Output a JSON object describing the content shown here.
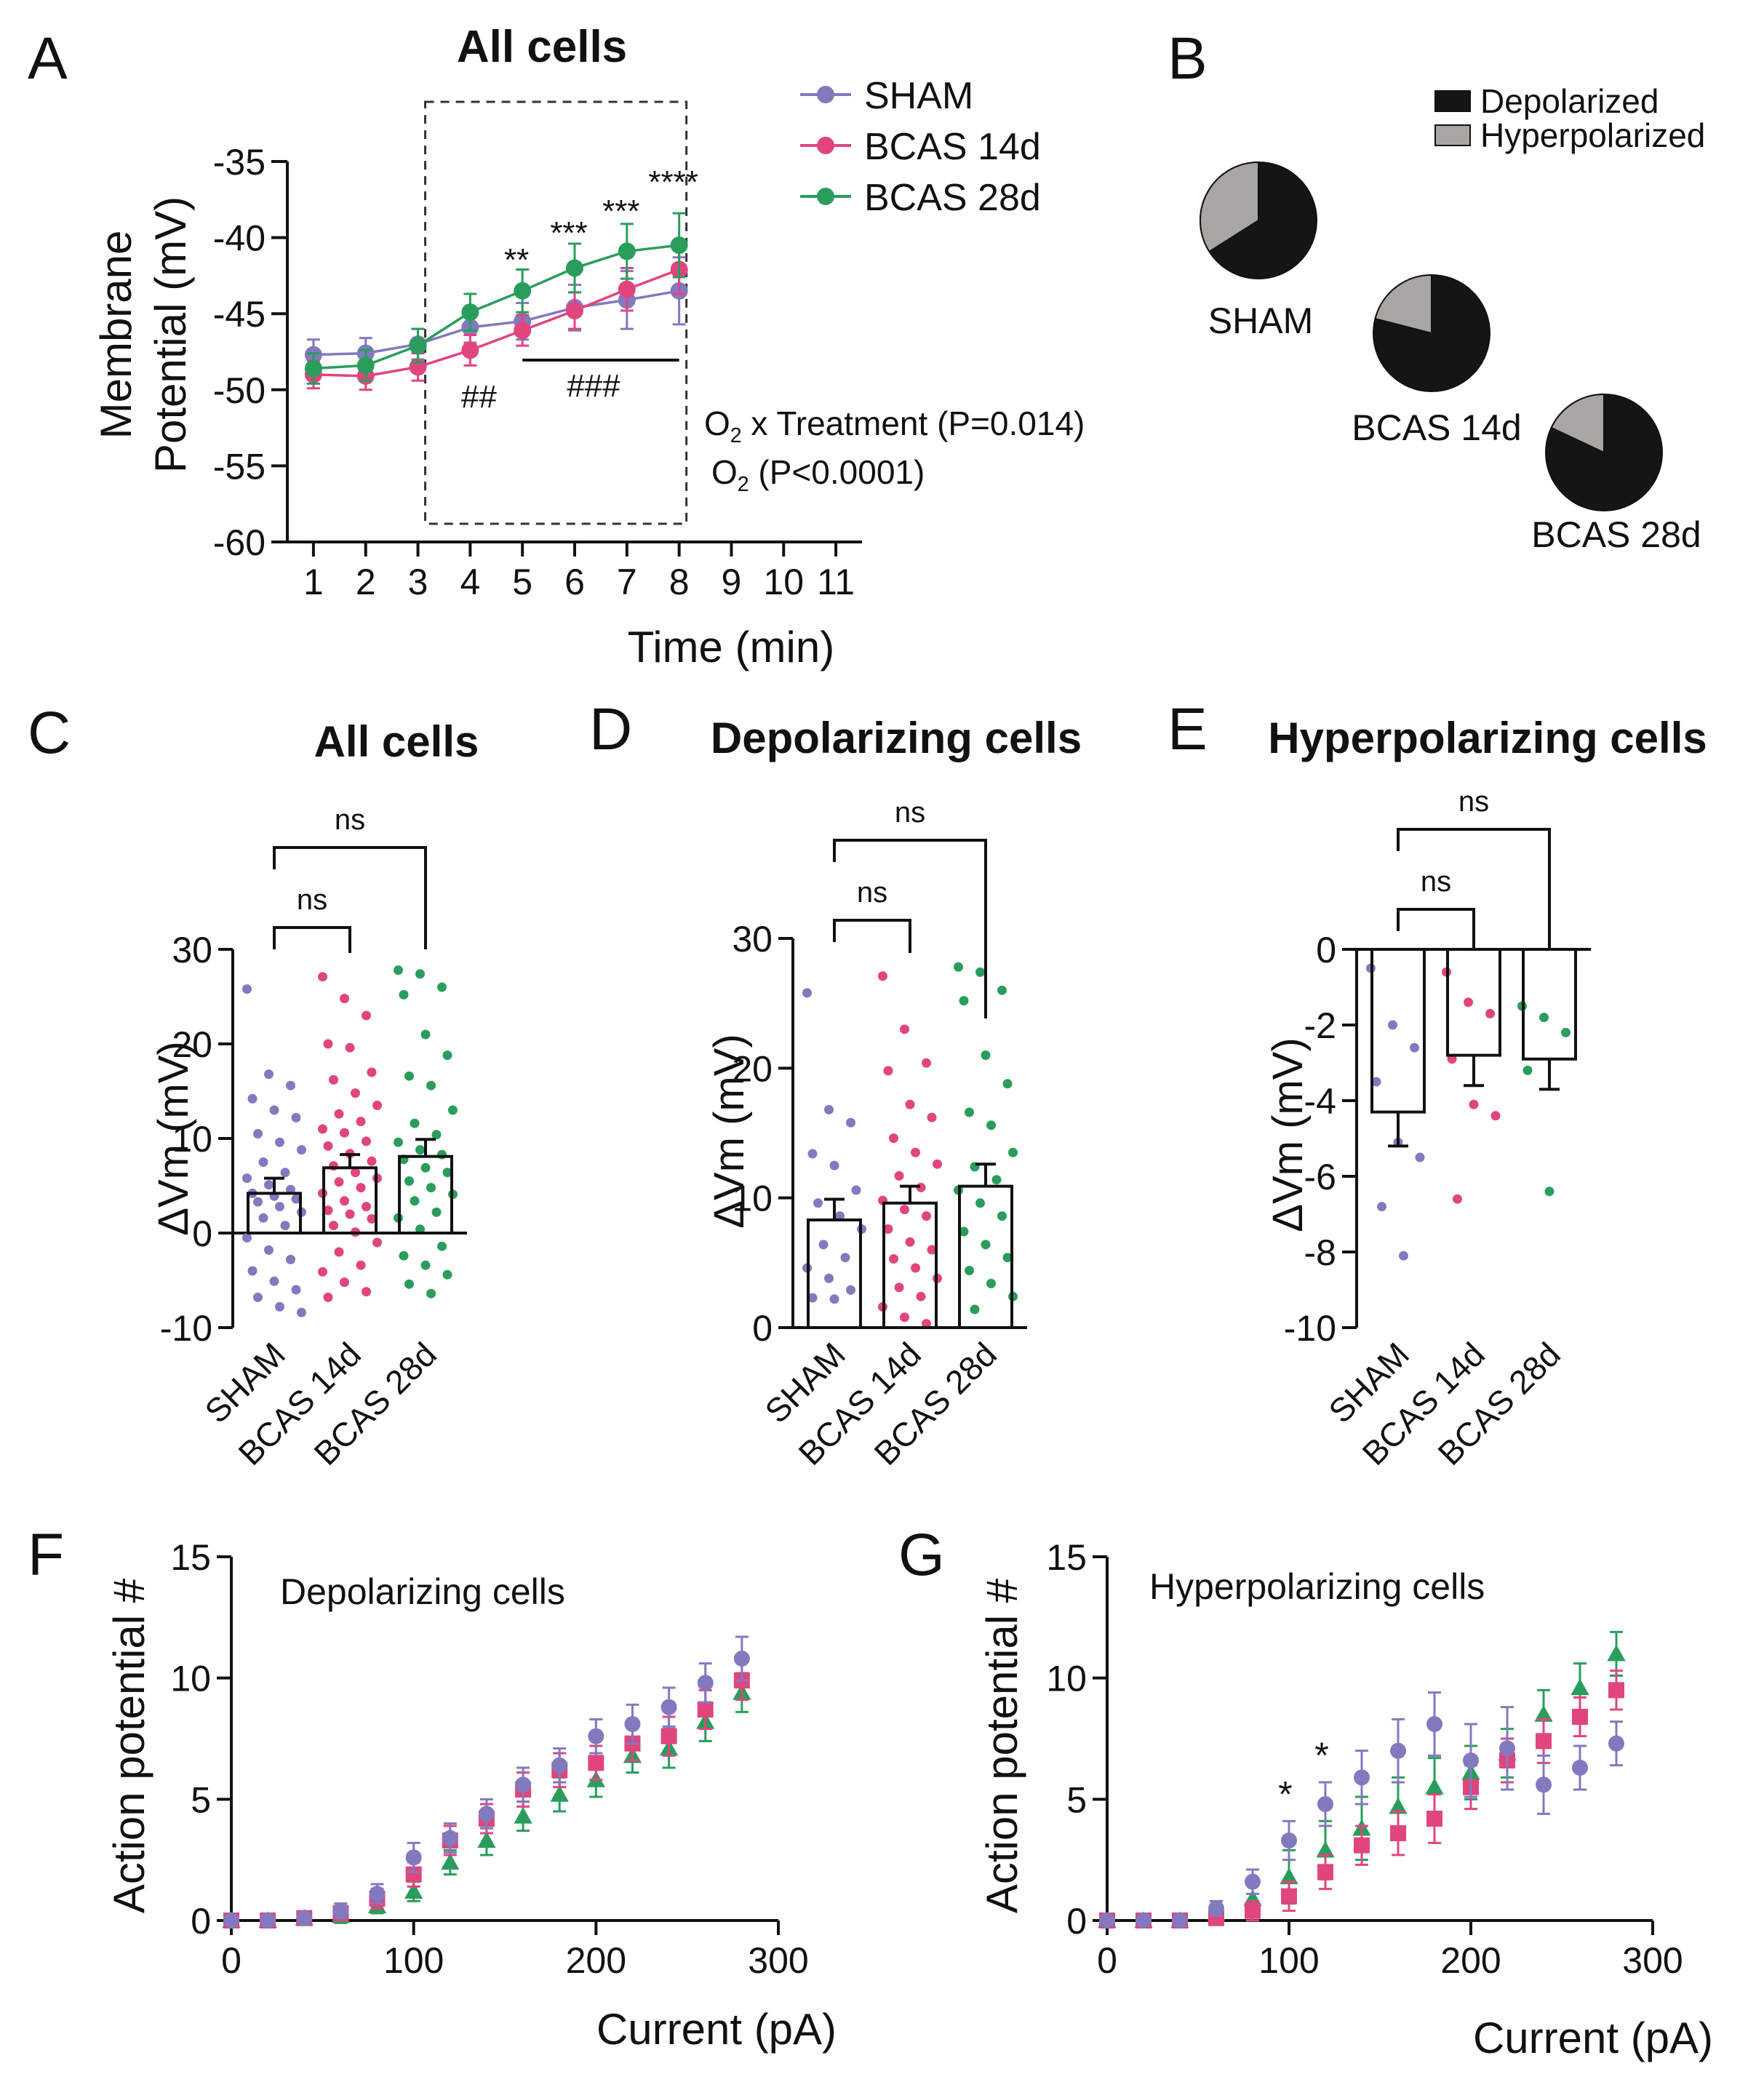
{
  "colors": {
    "sham": "#8279bf",
    "bcas14": "#e0457e",
    "bcas28": "#2a9d5c",
    "depolarized": "#151515",
    "hyperpolarized": "#a9a5a2",
    "axis": "#111111"
  },
  "legend": {
    "series": [
      "SHAM",
      "BCAS 14d",
      "BCAS 28d"
    ],
    "pie": [
      "Depolarized",
      "Hyperpolarized"
    ]
  },
  "chart_data": [
    {
      "panel": "A",
      "type": "line",
      "title": "All cells",
      "xlabel": "Time (min)",
      "ylabel_line1": "Membrane",
      "ylabel_line2": "Potential (mV)",
      "ylim": [
        -60,
        -35
      ],
      "xlim": [
        0.5,
        11.5
      ],
      "xticks": [
        "1",
        "2",
        "3",
        "4",
        "5",
        "6",
        "7",
        "8",
        "9",
        "10",
        "11"
      ],
      "yticks": [
        "-35",
        "-40",
        "-45",
        "-50",
        "-55",
        "-60"
      ],
      "x": [
        1,
        2,
        3,
        4,
        5,
        6,
        7,
        8
      ],
      "series": [
        {
          "name": "SHAM",
          "values": [
            -47.7,
            -47.6,
            -47.0,
            -45.9,
            -45.5,
            -44.6,
            -44.1,
            -43.5
          ],
          "err": [
            1.0,
            1.0,
            1.0,
            1.0,
            1.2,
            1.5,
            1.9,
            2.2
          ]
        },
        {
          "name": "BCAS 14d",
          "values": [
            -49.0,
            -49.1,
            -48.5,
            -47.4,
            -46.1,
            -44.8,
            -43.4,
            -42.1
          ],
          "err": [
            0.9,
            0.9,
            0.9,
            1.0,
            1.0,
            1.2,
            1.4,
            1.6
          ]
        },
        {
          "name": "BCAS 28d",
          "values": [
            -48.6,
            -48.4,
            -47.1,
            -44.9,
            -43.5,
            -42.0,
            -40.9,
            -40.5
          ],
          "err": [
            1.0,
            1.0,
            1.1,
            1.2,
            1.4,
            1.6,
            1.8,
            2.1
          ]
        }
      ],
      "star_annotations": [
        {
          "x": 5,
          "text": "**"
        },
        {
          "x": 6,
          "text": "***"
        },
        {
          "x": 7,
          "text": "***"
        },
        {
          "x": 8,
          "text": "****"
        }
      ],
      "hash_annotations": [
        {
          "x": 4,
          "text": "##"
        },
        {
          "x": 6.5,
          "text": "###"
        }
      ],
      "hash_bar_range": [
        5,
        8
      ],
      "highlight_range": [
        3,
        8
      ],
      "stats_text": [
        "O2 x Treatment (P=0.014)",
        "O2 (P<0.0001)"
      ]
    },
    {
      "panel": "B",
      "type": "pie",
      "groups": [
        {
          "name": "SHAM",
          "depolarized": 0.66,
          "hyperpolarized": 0.34
        },
        {
          "name": "BCAS 14d",
          "depolarized": 0.79,
          "hyperpolarized": 0.21
        },
        {
          "name": "BCAS 28d",
          "depolarized": 0.82,
          "hyperpolarized": 0.18
        }
      ]
    },
    {
      "panel": "C",
      "type": "bar",
      "title": "All cells",
      "ylabel": "ΔVm (mV)",
      "ylim": [
        -10,
        30
      ],
      "yticks": [
        "30",
        "20",
        "10",
        "0",
        "-10"
      ],
      "categories": [
        "SHAM",
        "BCAS 14d",
        "BCAS 28d"
      ],
      "means": [
        4.2,
        6.9,
        8.1
      ],
      "sem": [
        1.6,
        1.4,
        1.8
      ],
      "points": [
        [
          25.8,
          16.8,
          15.6,
          14.2,
          13.0,
          12.2,
          10.5,
          9.6,
          8.8,
          7.5,
          6.4,
          5.8,
          5.1,
          4.6,
          4.2,
          3.9,
          3.6,
          3.3,
          2.8,
          2.2,
          1.6,
          0.8,
          -0.5,
          -1.8,
          -2.8,
          -4.0,
          -5.1,
          -6.0,
          -6.8,
          -7.8,
          -8.4
        ],
        [
          27.1,
          24.8,
          23.0,
          20.0,
          19.6,
          17.0,
          16.2,
          14.8,
          13.5,
          12.6,
          11.8,
          11.0,
          10.6,
          9.7,
          9.2,
          8.4,
          7.6,
          7.1,
          6.4,
          5.8,
          5.4,
          4.8,
          4.2,
          3.4,
          2.8,
          2.4,
          2.0,
          1.5,
          0.8,
          0.1,
          -1.0,
          -2.0,
          -3.4,
          -4.1,
          -5.2,
          -6.2,
          -6.8
        ],
        [
          27.8,
          27.4,
          26.0,
          25.2,
          21.0,
          18.8,
          16.6,
          15.6,
          13.0,
          11.6,
          10.4,
          9.6,
          8.8,
          8.3,
          7.8,
          6.9,
          6.4,
          5.5,
          4.8,
          4.1,
          3.4,
          2.2,
          1.6,
          0.4,
          -1.4,
          -2.4,
          -3.4,
          -4.4,
          -5.4,
          -6.4
        ]
      ],
      "comparisons": [
        {
          "from": 0,
          "to": 1,
          "label": "ns"
        },
        {
          "from": 0,
          "to": 2,
          "label": "ns"
        }
      ]
    },
    {
      "panel": "D",
      "type": "bar",
      "title": "Depolarizing cells",
      "ylabel": "ΔVm (mV)",
      "ylim": [
        0,
        30
      ],
      "yticks": [
        "30",
        "20",
        "10",
        "0"
      ],
      "categories": [
        "SHAM",
        "BCAS 14d",
        "BCAS 28d"
      ],
      "means": [
        8.3,
        9.6,
        10.9
      ],
      "sem": [
        1.6,
        1.3,
        1.7
      ],
      "points": [
        [
          25.8,
          16.8,
          15.8,
          13.4,
          12.5,
          10.6,
          9.6,
          8.6,
          7.6,
          6.4,
          5.4,
          4.6,
          3.8,
          2.9,
          2.3,
          2.2
        ],
        [
          27.1,
          23.0,
          20.4,
          19.8,
          17.2,
          16.2,
          14.6,
          13.5,
          12.6,
          11.7,
          10.8,
          9.8,
          9.1,
          8.6,
          7.6,
          6.6,
          6.0,
          5.3,
          4.6,
          3.8,
          3.1,
          2.4,
          1.6,
          0.8,
          0.3
        ],
        [
          27.8,
          27.4,
          26.0,
          25.2,
          21.0,
          18.8,
          16.6,
          15.6,
          13.5,
          12.4,
          11.4,
          10.6,
          9.6,
          8.6,
          7.4,
          6.4,
          5.4,
          4.4,
          3.4,
          2.4,
          1.4
        ]
      ],
      "comparisons": [
        {
          "from": 0,
          "to": 1,
          "label": "ns"
        },
        {
          "from": 0,
          "to": 2,
          "label": "ns"
        }
      ]
    },
    {
      "panel": "E",
      "type": "bar",
      "title": "Hyperpolarizing cells",
      "ylabel": "ΔVm (mV)",
      "ylim": [
        -10,
        0
      ],
      "yticks": [
        "0",
        "-2",
        "-4",
        "-6",
        "-8",
        "-10"
      ],
      "categories": [
        "SHAM",
        "BCAS 14d",
        "BCAS 28d"
      ],
      "means": [
        -4.3,
        -2.8,
        -2.9
      ],
      "sem": [
        0.9,
        0.8,
        0.8
      ],
      "points": [
        [
          -0.5,
          -2.0,
          -2.6,
          -3.5,
          -5.1,
          -5.5,
          -6.8,
          -8.1
        ],
        [
          -0.6,
          -1.4,
          -1.7,
          -2.9,
          -4.1,
          -4.4,
          -6.6
        ],
        [
          -1.5,
          -1.8,
          -2.2,
          -3.2,
          -6.4
        ]
      ],
      "comparisons": [
        {
          "from": 0,
          "to": 1,
          "label": "ns"
        },
        {
          "from": 0,
          "to": 2,
          "label": "ns"
        }
      ]
    },
    {
      "panel": "F",
      "type": "scatter",
      "title": "Depolarizing cells",
      "xlabel": "Current (pA)",
      "ylabel": "Action potential #",
      "xlim": [
        0,
        300
      ],
      "ylim": [
        0,
        15
      ],
      "xticks": [
        "0",
        "100",
        "200",
        "300"
      ],
      "yticks": [
        "0",
        "5",
        "10",
        "15"
      ],
      "x": [
        0,
        20,
        40,
        60,
        80,
        100,
        120,
        140,
        160,
        180,
        200,
        220,
        240,
        260,
        280
      ],
      "series": [
        {
          "name": "SHAM",
          "values": [
            0,
            0,
            0.1,
            0.4,
            1.1,
            2.6,
            3.4,
            4.4,
            5.6,
            6.4,
            7.6,
            8.1,
            8.8,
            9.8,
            10.8
          ],
          "err": [
            0.1,
            0.1,
            0.2,
            0.3,
            0.4,
            0.6,
            0.6,
            0.6,
            0.7,
            0.7,
            0.7,
            0.8,
            0.8,
            0.8,
            0.9
          ]
        },
        {
          "name": "BCAS 14d",
          "values": [
            0,
            0,
            0.1,
            0.3,
            0.9,
            1.9,
            3.3,
            4.2,
            5.4,
            6.2,
            6.5,
            7.3,
            7.6,
            8.7,
            9.9
          ],
          "err": [
            0.1,
            0.1,
            0.2,
            0.3,
            0.4,
            0.5,
            0.6,
            0.6,
            0.7,
            0.7,
            0.7,
            0.7,
            0.8,
            0.8,
            0.8
          ]
        },
        {
          "name": "BCAS 28d",
          "values": [
            0,
            0,
            0.1,
            0.2,
            0.6,
            1.2,
            2.4,
            3.3,
            4.3,
            5.2,
            5.8,
            6.8,
            7.1,
            8.2,
            9.4
          ],
          "err": [
            0.1,
            0.1,
            0.2,
            0.3,
            0.3,
            0.4,
            0.5,
            0.6,
            0.6,
            0.7,
            0.7,
            0.7,
            0.8,
            0.8,
            0.8
          ]
        }
      ]
    },
    {
      "panel": "G",
      "type": "scatter",
      "title": "Hyperpolarizing cells",
      "xlabel": "Current (pA)",
      "ylabel": "Action potential #",
      "xlim": [
        0,
        300
      ],
      "ylim": [
        0,
        15
      ],
      "xticks": [
        "0",
        "100",
        "200",
        "300"
      ],
      "yticks": [
        "0",
        "5",
        "10",
        "15"
      ],
      "x": [
        0,
        20,
        40,
        60,
        80,
        100,
        120,
        140,
        160,
        180,
        200,
        220,
        240,
        260,
        280
      ],
      "series": [
        {
          "name": "SHAM",
          "values": [
            0,
            0,
            0,
            0.5,
            1.6,
            3.3,
            4.8,
            5.9,
            7.0,
            8.1,
            6.6,
            7.1,
            5.6,
            6.3,
            7.3
          ],
          "err": [
            0.1,
            0.1,
            0.1,
            0.3,
            0.5,
            0.8,
            0.9,
            1.1,
            1.3,
            1.3,
            1.5,
            1.7,
            1.2,
            0.9,
            0.9
          ]
        },
        {
          "name": "BCAS 14d",
          "values": [
            0,
            0,
            0,
            0.1,
            0.4,
            1.0,
            2.0,
            3.1,
            3.6,
            4.2,
            5.5,
            6.6,
            7.4,
            8.4,
            9.5
          ],
          "err": [
            0.1,
            0.1,
            0.1,
            0.2,
            0.4,
            0.6,
            0.7,
            0.8,
            0.9,
            1.0,
            0.9,
            0.9,
            0.9,
            0.8,
            0.8
          ]
        },
        {
          "name": "BCAS 28d",
          "values": [
            0,
            0,
            0,
            0.3,
            0.9,
            1.8,
            2.9,
            3.8,
            4.7,
            5.5,
            6.1,
            6.9,
            8.5,
            9.6,
            11.0
          ],
          "err": [
            0.1,
            0.1,
            0.1,
            0.3,
            0.6,
            1.1,
            1.2,
            1.3,
            1.2,
            1.2,
            1.1,
            1.0,
            1.0,
            1.0,
            0.9
          ]
        }
      ],
      "star_annotations": [
        {
          "x": 100,
          "text": "*"
        },
        {
          "x": 120,
          "text": "*"
        }
      ]
    }
  ]
}
